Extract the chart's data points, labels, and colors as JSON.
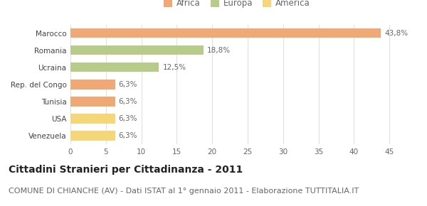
{
  "categories": [
    "Venezuela",
    "USA",
    "Tunisia",
    "Rep. del Congo",
    "Ucraina",
    "Romania",
    "Marocco"
  ],
  "values": [
    6.3,
    6.3,
    6.3,
    6.3,
    12.5,
    18.8,
    43.8
  ],
  "labels": [
    "6,3%",
    "6,3%",
    "6,3%",
    "6,3%",
    "12,5%",
    "18,8%",
    "43,8%"
  ],
  "colors": [
    "#f5d778",
    "#f5d778",
    "#f0a875",
    "#f0a875",
    "#b8cc8a",
    "#b8cc8a",
    "#f0a875"
  ],
  "legend": [
    {
      "label": "Africa",
      "color": "#f0a875"
    },
    {
      "label": "Europa",
      "color": "#b8cc8a"
    },
    {
      "label": "America",
      "color": "#f5d778"
    }
  ],
  "xlim": [
    0,
    47
  ],
  "xticks": [
    0,
    5,
    10,
    15,
    20,
    25,
    30,
    35,
    40,
    45
  ],
  "title": "Cittadini Stranieri per Cittadinanza - 2011",
  "subtitle": "COMUNE DI CHIANCHE (AV) - Dati ISTAT al 1° gennaio 2011 - Elaborazione TUTTITALIA.IT",
  "background_color": "#ffffff",
  "grid_color": "#e0e0e0",
  "bar_height": 0.55,
  "title_fontsize": 10,
  "subtitle_fontsize": 8,
  "label_fontsize": 7.5,
  "tick_fontsize": 7.5,
  "legend_fontsize": 8.5
}
